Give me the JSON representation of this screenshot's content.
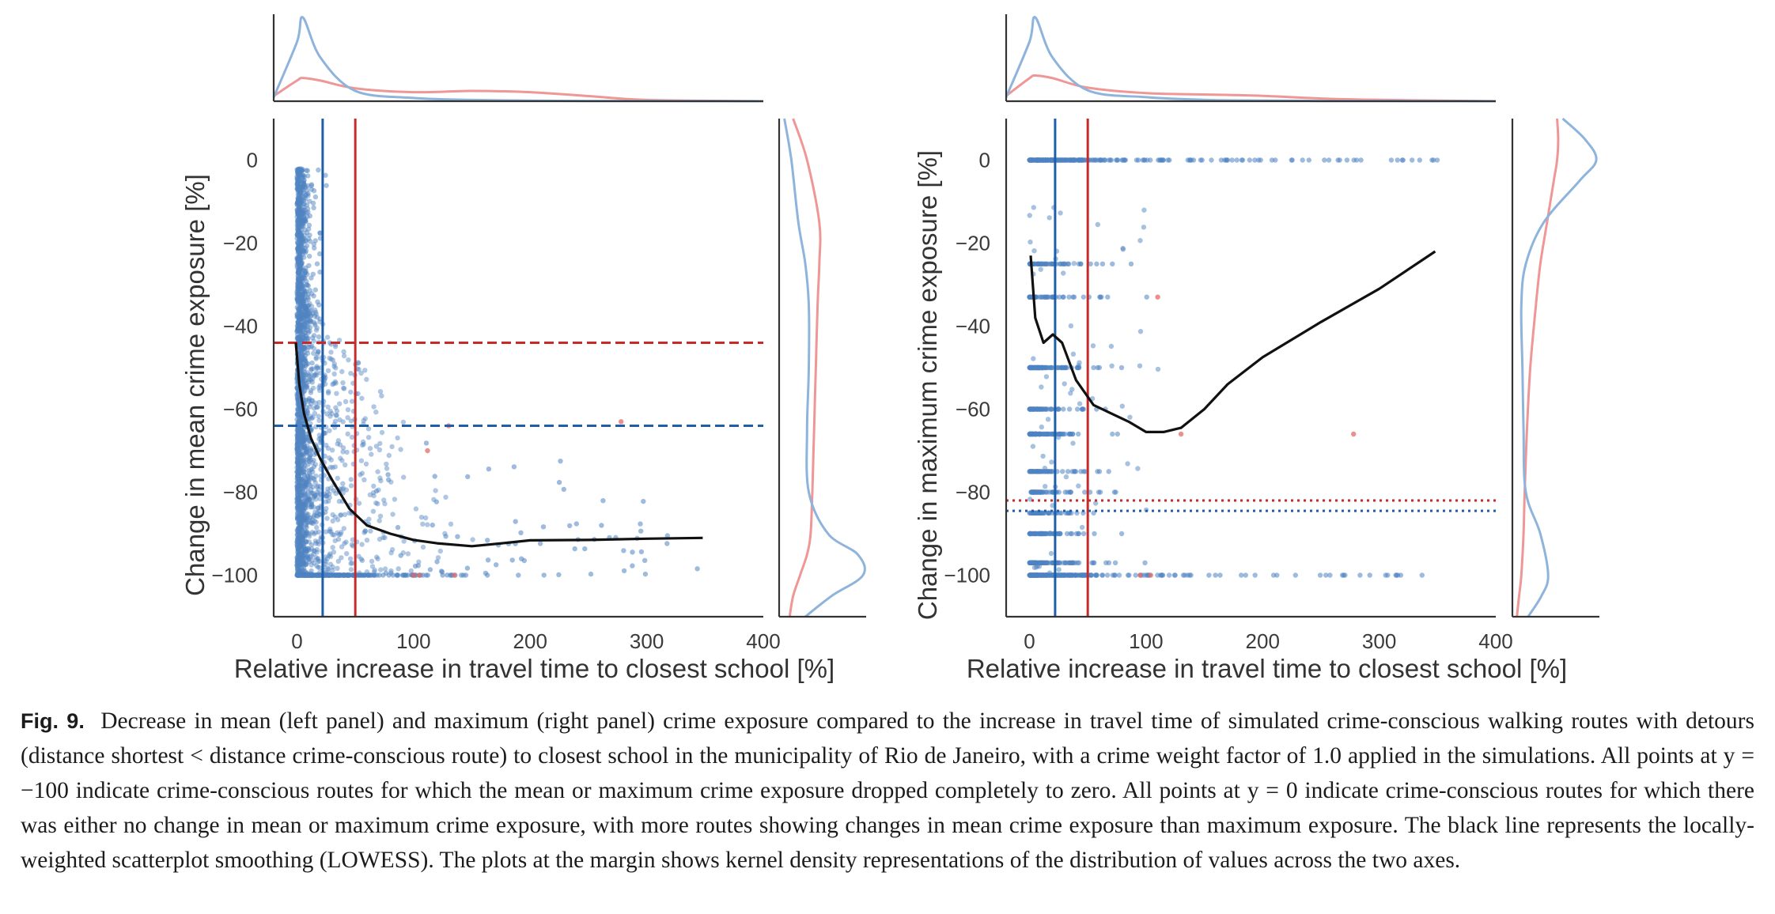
{
  "colors": {
    "scatter": "#4f83c2",
    "highlight": "#e46a6a",
    "lowess": "#111111",
    "blue_line": "#1f5ea8",
    "red_line": "#c62a2a",
    "kde_blue": "#8eb4dc",
    "kde_red": "#ef9696"
  },
  "chart_data": [
    {
      "type": "scatter",
      "panel": "left",
      "xlabel": "Relative increase in travel time to closest school [%]",
      "ylabel": "Change in mean crime exposure [%]",
      "xlim": [
        -20,
        400
      ],
      "ylim": [
        -110,
        10
      ],
      "xticks": [
        "0",
        "100",
        "200",
        "300",
        "400"
      ],
      "yticks": [
        "0",
        "−20",
        "−40",
        "−60",
        "−80",
        "−100"
      ],
      "reference_lines": {
        "vertical_blue": 22,
        "vertical_red": 50,
        "horizontal_red_dashed": -44,
        "horizontal_blue_dashed": -64
      },
      "lowess": [
        [
          -1,
          -44
        ],
        [
          2,
          -54
        ],
        [
          6,
          -61
        ],
        [
          12,
          -67
        ],
        [
          20,
          -72
        ],
        [
          30,
          -77
        ],
        [
          45,
          -84
        ],
        [
          60,
          -88
        ],
        [
          80,
          -90
        ],
        [
          100,
          -91.5
        ],
        [
          120,
          -92.3
        ],
        [
          150,
          -93
        ],
        [
          180,
          -92.2
        ],
        [
          200,
          -91.6
        ],
        [
          250,
          -91.5
        ],
        [
          300,
          -91.2
        ],
        [
          348,
          -91
        ]
      ],
      "highlighted_points": [
        [
          112,
          -70
        ],
        [
          130,
          -64
        ],
        [
          100,
          -100
        ],
        [
          105,
          -100
        ],
        [
          135,
          -100
        ],
        [
          278,
          -63
        ]
      ],
      "marginal_kde": {
        "x": {
          "x": [
            -20,
            0,
            5,
            20,
            50,
            100,
            150,
            200,
            250,
            300,
            400
          ],
          "blue": [
            0.3,
            4.6,
            6.5,
            3.4,
            0.8,
            0.25,
            0.1,
            0.05,
            0.02,
            0.01,
            0.0
          ],
          "red": [
            0.4,
            1.6,
            1.8,
            1.6,
            1.0,
            0.7,
            0.8,
            0.7,
            0.4,
            0.1,
            0.0
          ]
        },
        "y": {
          "y": [
            10,
            0,
            -15,
            -25,
            -35,
            -50,
            -65,
            -80,
            -90,
            -95,
            -100,
            -105,
            -110
          ],
          "blue": [
            0.3,
            0.7,
            1.1,
            1.5,
            1.7,
            1.7,
            1.6,
            1.7,
            2.8,
            4.5,
            4.8,
            3.0,
            1.5
          ],
          "red": [
            0.8,
            1.6,
            2.3,
            2.3,
            2.2,
            2.1,
            2.0,
            1.9,
            1.8,
            1.6,
            1.2,
            0.8,
            0.6
          ]
        }
      }
    },
    {
      "type": "scatter",
      "panel": "right",
      "xlabel": "Relative increase in travel time to closest school [%]",
      "ylabel": "Change in maximum crime exposure [%]",
      "xlim": [
        -20,
        400
      ],
      "ylim": [
        -110,
        10
      ],
      "xticks": [
        "0",
        "100",
        "200",
        "300",
        "400"
      ],
      "yticks": [
        "0",
        "−20",
        "−40",
        "−60",
        "−80",
        "−100"
      ],
      "reference_lines": {
        "vertical_blue": 22,
        "vertical_red": 50,
        "horizontal_red_dotted": -82,
        "horizontal_blue_dotted": -84.5
      },
      "lowess": [
        [
          1,
          -23
        ],
        [
          5,
          -38
        ],
        [
          12,
          -44
        ],
        [
          20,
          -42
        ],
        [
          28,
          -44
        ],
        [
          40,
          -53
        ],
        [
          55,
          -59
        ],
        [
          70,
          -61
        ],
        [
          85,
          -63
        ],
        [
          100,
          -65.5
        ],
        [
          115,
          -65.5
        ],
        [
          130,
          -64.5
        ],
        [
          150,
          -60
        ],
        [
          170,
          -54
        ],
        [
          200,
          -47.5
        ],
        [
          250,
          -39
        ],
        [
          300,
          -31
        ],
        [
          348,
          -22
        ]
      ],
      "highlighted_points": [
        [
          110,
          -33
        ],
        [
          130,
          -66
        ],
        [
          95,
          -100
        ],
        [
          104,
          -100
        ],
        [
          278,
          -66
        ]
      ],
      "marginal_kde": {
        "x": {
          "x": [
            -20,
            0,
            5,
            20,
            50,
            100,
            150,
            200,
            250,
            300,
            400
          ],
          "blue": [
            0.3,
            4.4,
            6.2,
            3.2,
            0.8,
            0.3,
            0.1,
            0.05,
            0.02,
            0.01,
            0.0
          ],
          "red": [
            0.4,
            1.7,
            1.9,
            1.7,
            1.0,
            0.6,
            0.5,
            0.4,
            0.2,
            0.1,
            0.0
          ]
        },
        "y": {
          "y": [
            10,
            5,
            0,
            -5,
            -15,
            -25,
            -35,
            -50,
            -65,
            -80,
            -90,
            -100,
            -105,
            -110
          ],
          "blue": [
            4.5,
            6.5,
            7.5,
            6.0,
            2.8,
            1.2,
            0.8,
            0.9,
            1.0,
            1.2,
            2.5,
            3.2,
            2.6,
            1.4
          ],
          "red": [
            4.0,
            4.1,
            4.0,
            3.7,
            3.1,
            2.5,
            2.1,
            1.6,
            1.3,
            1.1,
            1.0,
            0.8,
            0.6,
            0.4
          ]
        }
      }
    }
  ],
  "caption": {
    "label": "Fig. 9.",
    "text": "Decrease in mean (left panel) and maximum (right panel) crime exposure compared to the increase in travel time of simulated crime-conscious walking routes with detours (distance shortest < distance crime-conscious route) to closest school in the municipality of Rio de Janeiro, with a crime weight factor of 1.0 applied in the simulations. All points at y = −100 indicate crime-conscious routes for which the mean or maximum crime exposure dropped completely to zero. All points at y = 0 indicate crime-conscious routes for which there was either no change in mean or maximum crime exposure, with more routes showing changes in mean crime exposure than maximum exposure. The black line represents the locally-weighted scatterplot smoothing (LOWESS). The plots at the margin shows kernel density representations of the distribution of values across the two axes."
  }
}
